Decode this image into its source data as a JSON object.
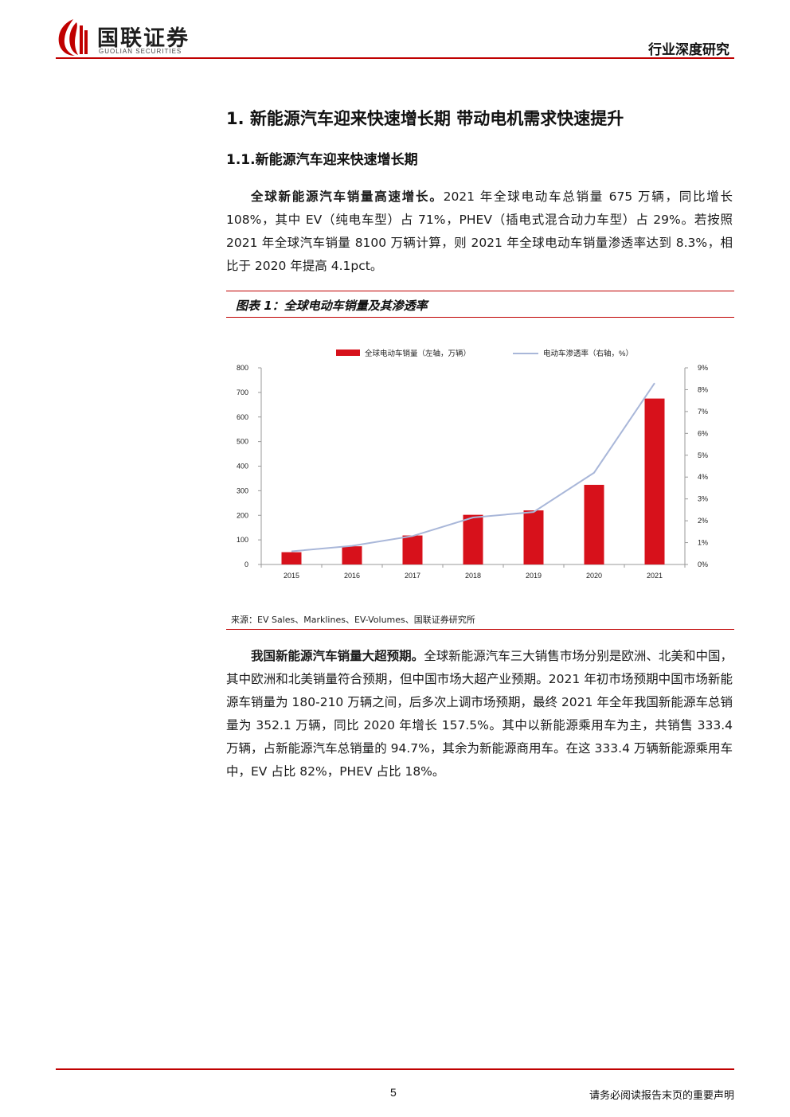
{
  "header": {
    "company_cn": "国联证券",
    "company_en": "GUOLIAN SECURITIES",
    "report_type": "行业深度研究",
    "brand_color": "#c00000"
  },
  "section": {
    "heading": "1.  新能源汽车迎来快速增长期 带动电机需求快速提升",
    "subheading": "1.1.新能源汽车迎来快速增长期"
  },
  "paragraph1": {
    "lead": "全球新能源汽车销量高速增长。",
    "body": "2021 年全球电动车总销量 675 万辆，同比增长 108%，其中 EV（纯电车型）占 71%，PHEV（插电式混合动力车型）占 29%。若按照 2021 年全球汽车销量 8100 万辆计算，则 2021 年全球电动车销量渗透率达到 8.3%，相比于 2020 年提高 4.1pct。"
  },
  "figure": {
    "title": "图表 1：全球电动车销量及其渗透率",
    "source": "来源：EV Sales、Marklines、EV-Volumes、国联证券研究所"
  },
  "chart_data": {
    "type": "bar",
    "categories": [
      "2015",
      "2016",
      "2017",
      "2018",
      "2019",
      "2020",
      "2021"
    ],
    "series": [
      {
        "name": "全球电动车销量（左轴，万辆）",
        "type": "bar",
        "axis": "left",
        "color": "#d7111b",
        "values": [
          50,
          74,
          118,
          202,
          220,
          324,
          675
        ]
      },
      {
        "name": "电动车渗透率（右轴，%）",
        "type": "line",
        "axis": "right",
        "color": "#a9b7d9",
        "values": [
          0.6,
          0.85,
          1.3,
          2.15,
          2.4,
          4.2,
          8.3
        ]
      }
    ],
    "y_left": {
      "lim": [
        0,
        800
      ],
      "ticks": [
        "0",
        "100",
        "200",
        "300",
        "400",
        "500",
        "600",
        "700",
        "800"
      ]
    },
    "y_right": {
      "lim": [
        0,
        9
      ],
      "ticks": [
        "0%",
        "1%",
        "2%",
        "3%",
        "4%",
        "5%",
        "6%",
        "7%",
        "8%",
        "9%"
      ]
    },
    "legend_position": "top-center",
    "grid": false
  },
  "paragraph2": {
    "lead": "我国新能源汽车销量大超预期。",
    "body": "全球新能源汽车三大销售市场分别是欧洲、北美和中国，其中欧洲和北美销量符合预期，但中国市场大超产业预期。2021 年初市场预期中国市场新能源车销量为 180-210 万辆之间，后多次上调市场预期，最终 2021 年全年我国新能源车总销量为 352.1 万辆，同比 2020 年增长 157.5%。其中以新能源乘用车为主，共销售 333.4 万辆，占新能源汽车总销量的 94.7%，其余为新能源商用车。在这 333.4 万辆新能源乘用车中，EV 占比 82%，PHEV 占比 18%。"
  },
  "footer": {
    "page_number": "5",
    "disclaimer": "请务必阅读报告末页的重要声明"
  }
}
